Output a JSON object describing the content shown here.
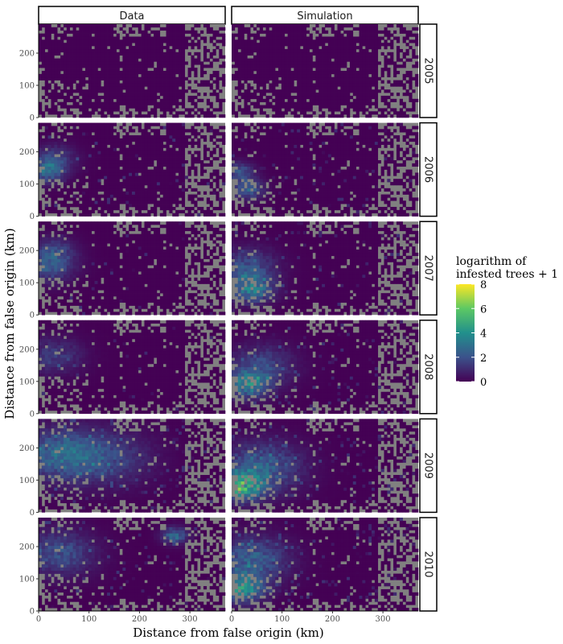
{
  "chart_data": {
    "type": "heatmap",
    "columns": [
      "Data",
      "Simulation"
    ],
    "rows": [
      "2005",
      "2006",
      "2007",
      "2008",
      "2009",
      "2010"
    ],
    "xlabel": "Distance from false origin (km)",
    "ylabel": "Distance from false origin (km)",
    "xlim": [
      0,
      370
    ],
    "ylim": [
      0,
      290
    ],
    "x_ticks": [
      0,
      100,
      200,
      300
    ],
    "y_ticks": [
      0,
      100,
      200
    ],
    "legend": {
      "title_line1": "logarithm of",
      "title_line2": "infested trees + 1",
      "min": 0,
      "max": 8,
      "ticks": [
        0,
        2,
        4,
        6,
        8
      ],
      "placement": "right"
    },
    "colors": {
      "no_data": "#808080",
      "scale": [
        "#440154",
        "#3b528b",
        "#21908c",
        "#5dc863",
        "#fde725"
      ]
    },
    "panels": [
      {
        "column": "Data",
        "year": "2005",
        "intensity": 0.0,
        "hotspots": []
      },
      {
        "column": "Simulation",
        "year": "2005",
        "intensity": 0.0,
        "hotspots": []
      },
      {
        "column": "Data",
        "year": "2006",
        "intensity": 0.2,
        "hotspots": [
          {
            "x": 15,
            "y": 140,
            "value": 3.2,
            "spread": 25
          },
          {
            "x": 30,
            "y": 180,
            "value": 2.0,
            "spread": 30
          }
        ]
      },
      {
        "column": "Simulation",
        "year": "2006",
        "intensity": 0.25,
        "hotspots": [
          {
            "x": 30,
            "y": 85,
            "value": 3.5,
            "spread": 22
          },
          {
            "x": 15,
            "y": 140,
            "value": 2.5,
            "spread": 20
          }
        ]
      },
      {
        "column": "Data",
        "year": "2007",
        "intensity": 0.15,
        "hotspots": [
          {
            "x": 20,
            "y": 150,
            "value": 2.5,
            "spread": 35
          },
          {
            "x": 30,
            "y": 200,
            "value": 1.8,
            "spread": 30
          }
        ]
      },
      {
        "column": "Simulation",
        "year": "2007",
        "intensity": 0.3,
        "hotspots": [
          {
            "x": 40,
            "y": 80,
            "value": 3.8,
            "spread": 30
          },
          {
            "x": 30,
            "y": 150,
            "value": 2.5,
            "spread": 40
          }
        ]
      },
      {
        "column": "Data",
        "year": "2008",
        "intensity": 0.12,
        "hotspots": [
          {
            "x": 30,
            "y": 180,
            "value": 1.8,
            "spread": 40
          }
        ]
      },
      {
        "column": "Simulation",
        "year": "2008",
        "intensity": 0.35,
        "hotspots": [
          {
            "x": 30,
            "y": 90,
            "value": 4.0,
            "spread": 30
          },
          {
            "x": 60,
            "y": 150,
            "value": 2.2,
            "spread": 45
          }
        ]
      },
      {
        "column": "Data",
        "year": "2009",
        "intensity": 0.45,
        "hotspots": [
          {
            "x": 40,
            "y": 180,
            "value": 3.2,
            "spread": 55
          },
          {
            "x": 140,
            "y": 170,
            "value": 2.0,
            "spread": 60
          }
        ]
      },
      {
        "column": "Simulation",
        "year": "2009",
        "intensity": 0.55,
        "hotspots": [
          {
            "x": 20,
            "y": 80,
            "value": 5.2,
            "spread": 30
          },
          {
            "x": 60,
            "y": 140,
            "value": 3.0,
            "spread": 55
          }
        ]
      },
      {
        "column": "Data",
        "year": "2010",
        "intensity": 0.3,
        "hotspots": [
          {
            "x": 40,
            "y": 180,
            "value": 2.5,
            "spread": 50
          },
          {
            "x": 270,
            "y": 235,
            "value": 3.5,
            "spread": 18
          }
        ]
      },
      {
        "column": "Simulation",
        "year": "2010",
        "intensity": 0.6,
        "hotspots": [
          {
            "x": 20,
            "y": 70,
            "value": 4.8,
            "spread": 30
          },
          {
            "x": 40,
            "y": 160,
            "value": 3.0,
            "spread": 50
          }
        ]
      }
    ]
  }
}
